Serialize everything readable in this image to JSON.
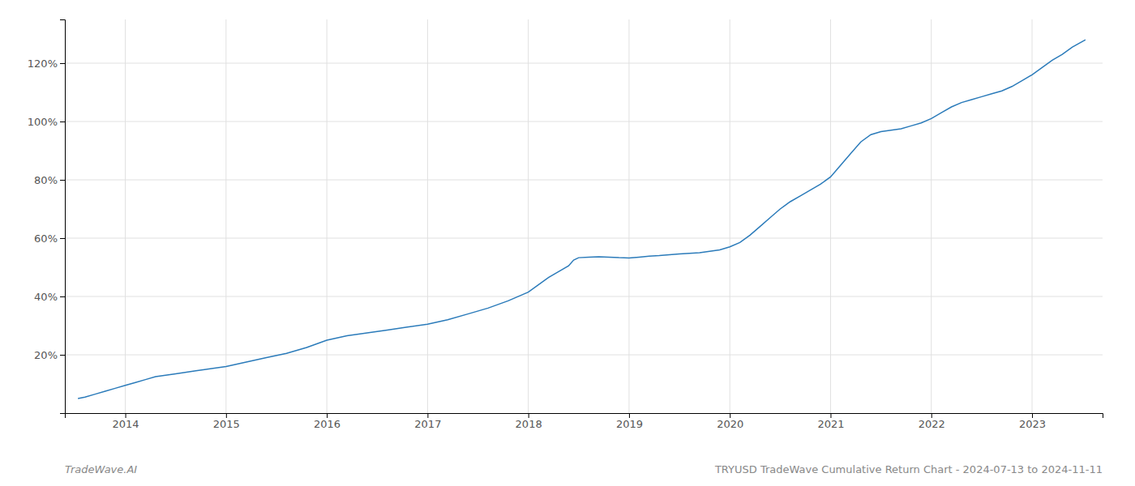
{
  "chart_data": {
    "type": "line",
    "title": "TRYUSD TradeWave Cumulative Return Chart - 2024-07-13 to 2024-11-11",
    "annotations": [
      "TradeWave.AI"
    ],
    "color": "#2b7bba",
    "grid": true,
    "x": [
      2013.53,
      2013.6,
      2013.7,
      2013.8,
      2013.9,
      2014.0,
      2014.1,
      2014.2,
      2014.3,
      2014.5,
      2014.7,
      2014.9,
      2015.0,
      2015.2,
      2015.4,
      2015.6,
      2015.8,
      2016.0,
      2016.2,
      2016.4,
      2016.5,
      2016.6,
      2016.8,
      2017.0,
      2017.2,
      2017.4,
      2017.6,
      2017.8,
      2018.0,
      2018.1,
      2018.2,
      2018.3,
      2018.4,
      2018.45,
      2018.5,
      2018.6,
      2018.7,
      2018.8,
      2018.9,
      2019.0,
      2019.1,
      2019.2,
      2019.3,
      2019.4,
      2019.5,
      2019.6,
      2019.7,
      2019.8,
      2019.9,
      2020.0,
      2020.1,
      2020.2,
      2020.3,
      2020.4,
      2020.5,
      2020.6,
      2020.7,
      2020.8,
      2020.9,
      2021.0,
      2021.1,
      2021.2,
      2021.3,
      2021.4,
      2021.5,
      2021.6,
      2021.7,
      2021.8,
      2021.9,
      2022.0,
      2022.1,
      2022.2,
      2022.3,
      2022.4,
      2022.5,
      2022.6,
      2022.7,
      2022.8,
      2022.9,
      2023.0,
      2023.1,
      2023.2,
      2023.3,
      2023.4,
      2023.53
    ],
    "values": [
      5.0,
      5.5,
      6.5,
      7.5,
      8.5,
      9.5,
      10.5,
      11.5,
      12.5,
      13.5,
      14.5,
      15.5,
      16.0,
      17.5,
      19.0,
      20.5,
      22.5,
      25.0,
      26.5,
      27.5,
      28.0,
      28.5,
      29.5,
      30.5,
      32.0,
      34.0,
      36.0,
      38.5,
      41.5,
      44.0,
      46.5,
      48.5,
      50.5,
      52.5,
      53.3,
      53.5,
      53.6,
      53.5,
      53.3,
      53.2,
      53.5,
      53.8,
      54.0,
      54.3,
      54.6,
      54.8,
      55.0,
      55.5,
      56.0,
      57.0,
      58.5,
      61.0,
      64.0,
      67.0,
      70.0,
      72.5,
      74.5,
      76.5,
      78.5,
      81.0,
      85.0,
      89.0,
      93.0,
      95.5,
      96.5,
      97.0,
      97.5,
      98.5,
      99.5,
      101.0,
      103.0,
      105.0,
      106.5,
      107.5,
      108.5,
      109.5,
      110.5,
      112.0,
      114.0,
      116.0,
      118.5,
      121.0,
      123.0,
      125.5,
      128.0
    ],
    "xlim": [
      2013.4,
      2023.7
    ],
    "ylim": [
      0,
      135
    ],
    "xticks": [
      2014,
      2015,
      2016,
      2017,
      2018,
      2019,
      2020,
      2021,
      2022,
      2023
    ],
    "yticks": [
      {
        "value": 20,
        "label": "20%"
      },
      {
        "value": 40,
        "label": "40%"
      },
      {
        "value": 60,
        "label": "60%"
      },
      {
        "value": 80,
        "label": "80%"
      },
      {
        "value": 100,
        "label": "100%"
      },
      {
        "value": 120,
        "label": "120%"
      }
    ]
  }
}
